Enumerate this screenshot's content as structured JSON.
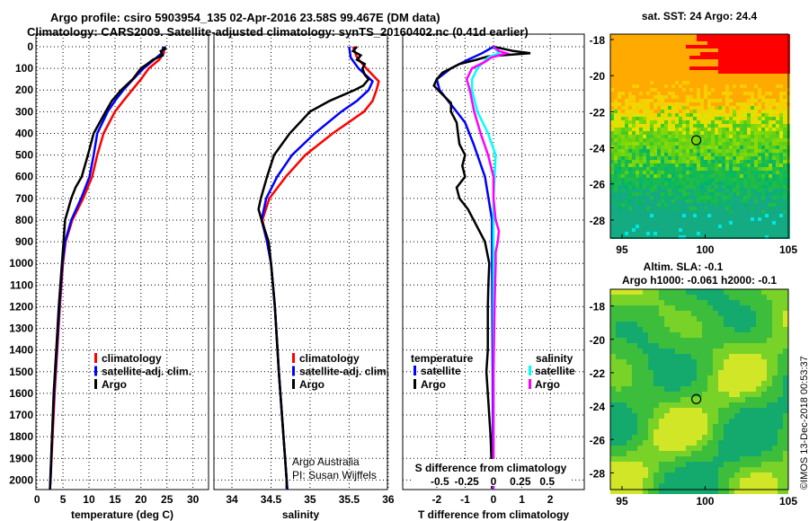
{
  "title_line1": "Argo profile: csiro 5903954_135 02-Apr-2016 23.58S 99.467E (DM data)",
  "title_line2": "Climatology: CARS2009. Satellite-adjusted climatology: synTS_20160402.nc (0.41d earlier)",
  "copyright": "©IMOS 13-Dec-2018 00:53:37",
  "colors": {
    "climatology": "#ff0000",
    "satellite": "#0000ff",
    "argo": "#000000",
    "sat_s": "#00ffff",
    "argo_s": "#ff00ff"
  },
  "chart_data": [
    {
      "type": "line",
      "name": "temperature",
      "xlabel": "temperature (deg C)",
      "ylabel": "depth",
      "xlim": [
        -0.2,
        33
      ],
      "ylim": [
        2044,
        -58
      ],
      "xticks": [
        "0",
        "5",
        "10",
        "15",
        "20",
        "25",
        "30"
      ],
      "xtick_values": [
        0,
        5,
        10,
        15,
        20,
        25,
        30
      ],
      "yticks": [
        "0",
        "100",
        "200",
        "300",
        "400",
        "500",
        "600",
        "700",
        "800",
        "900",
        "1000",
        "1100",
        "1200",
        "1300",
        "1400",
        "1500",
        "1600",
        "1700",
        "1800",
        "1900",
        "2000"
      ],
      "legend": [
        "climatology",
        "satellite-adj. clim.",
        "Argo"
      ],
      "series": [
        {
          "name": "climatology",
          "color": "#ff0000",
          "depth": [
            0,
            30,
            60,
            100,
            150,
            200,
            250,
            300,
            400,
            500,
            600,
            700,
            800,
            900,
            1000,
            1200,
            1400,
            1600,
            1800,
            2000,
            2044
          ],
          "values": [
            24.5,
            24.4,
            23.5,
            21.5,
            20,
            18.3,
            16.6,
            15,
            12.8,
            11.6,
            10.6,
            8.9,
            6.8,
            5.5,
            5.0,
            4.4,
            3.9,
            3.4,
            3.0,
            2.6,
            2.5
          ]
        },
        {
          "name": "satellite-adj. clim.",
          "color": "#0000ff",
          "depth": [
            0,
            30,
            60,
            100,
            150,
            200,
            250,
            300,
            400,
            500,
            600,
            700,
            800,
            900,
            1000,
            1200,
            1400,
            1600,
            1800,
            2000,
            2044
          ],
          "values": [
            24.3,
            24.0,
            22.5,
            20.5,
            18.5,
            16.6,
            15,
            13.6,
            11.6,
            10.9,
            10.1,
            8.5,
            6.6,
            5.4,
            4.9,
            4.3,
            3.8,
            3.3,
            2.9,
            2.55,
            2.5
          ]
        },
        {
          "name": "Argo",
          "color": "#000000",
          "depth": [
            0,
            10,
            20,
            40,
            60,
            80,
            100,
            150,
            200,
            250,
            300,
            400,
            500,
            600,
            650,
            700,
            750,
            800,
            900,
            1000,
            1200,
            1400,
            1600,
            1800,
            2000,
            2040
          ],
          "values": [
            24.4,
            24.7,
            23.8,
            24.2,
            22.3,
            21.2,
            20,
            18.4,
            16.2,
            14.4,
            13.2,
            10.9,
            9.8,
            8.6,
            7.4,
            6.6,
            6.0,
            5.4,
            5.1,
            4.8,
            4.2,
            3.7,
            3.2,
            2.9,
            2.6,
            2.5
          ]
        }
      ]
    },
    {
      "type": "line",
      "name": "salinity",
      "xlabel": "salinity",
      "xlim": [
        33.77,
        35.99
      ],
      "ylim": [
        2044,
        -58
      ],
      "xticks": [
        "34",
        "34.5",
        "35",
        "35.5",
        "36"
      ],
      "xtick_values": [
        34,
        34.5,
        35,
        35.5,
        36
      ],
      "legend": [
        "climatology",
        "satellite-adj. clim.",
        "Argo"
      ],
      "annotation": [
        "Argo Australia",
        "PI: Susan Wijffels"
      ],
      "series": [
        {
          "name": "climatology",
          "color": "#ff0000",
          "depth": [
            0,
            50,
            100,
            160,
            200,
            250,
            300,
            400,
            500,
            600,
            700,
            800,
            900,
            1000,
            1200,
            1500,
            2000,
            2044
          ],
          "values": [
            35.55,
            35.6,
            35.72,
            35.88,
            35.85,
            35.8,
            35.69,
            35.29,
            34.94,
            34.69,
            34.48,
            34.39,
            34.45,
            34.5,
            34.55,
            34.6,
            34.7,
            34.71
          ]
        },
        {
          "name": "satellite-adj. clim.",
          "color": "#0000ff",
          "depth": [
            0,
            50,
            100,
            160,
            200,
            250,
            300,
            400,
            500,
            600,
            700,
            800,
            900,
            1000,
            1200,
            1500,
            2000,
            2044
          ],
          "values": [
            35.5,
            35.52,
            35.62,
            35.8,
            35.75,
            35.6,
            35.4,
            35.06,
            34.77,
            34.58,
            34.44,
            34.38,
            34.45,
            34.5,
            34.55,
            34.6,
            34.7,
            34.71
          ]
        },
        {
          "name": "Argo",
          "color": "#000000",
          "depth": [
            0,
            20,
            40,
            60,
            80,
            100,
            130,
            150,
            180,
            200,
            250,
            300,
            400,
            500,
            600,
            700,
            750,
            800,
            900,
            1000,
            1200,
            1500,
            1800,
            2000,
            2040
          ],
          "values": [
            35.6,
            35.55,
            35.65,
            35.6,
            35.7,
            35.67,
            35.7,
            35.75,
            35.68,
            35.57,
            35.25,
            35.0,
            34.74,
            34.54,
            34.45,
            34.37,
            34.34,
            34.38,
            34.47,
            34.5,
            34.55,
            34.6,
            34.66,
            34.7,
            34.7
          ]
        }
      ]
    },
    {
      "type": "line",
      "name": "difference",
      "xlabel": "T difference from climatology",
      "xlabel_top": "S difference from climatology",
      "xlim": [
        -3.2,
        3.2
      ],
      "ylim": [
        2044,
        -58
      ],
      "xticks": [
        "-2",
        "-1",
        "0",
        "1",
        "2"
      ],
      "xtick_values": [
        -2,
        -1,
        0,
        1,
        2
      ],
      "sticks": [
        "-0.5",
        "-0.25",
        "0",
        "0.25",
        "0.5"
      ],
      "stick_values": [
        -0.5,
        -0.25,
        0,
        0.25,
        0.5
      ],
      "s_per_t": 0.2645,
      "legend_temperature": {
        "heading": "temperature",
        "items": [
          "satellite",
          "Argo"
        ]
      },
      "legend_salinity": {
        "heading": "salinity",
        "items": [
          "satellite",
          "Argo"
        ]
      },
      "series": [
        {
          "name": "T satellite",
          "color": "#0000ff",
          "unit": "T",
          "depth": [
            0,
            30,
            60,
            100,
            150,
            200,
            250,
            300,
            350,
            450,
            600,
            800,
            1000,
            1500,
            2000,
            2044
          ],
          "values": [
            0,
            -0.4,
            -0.9,
            -1.5,
            -2.0,
            -1.9,
            -1.6,
            -1.3,
            -1.0,
            -0.7,
            -0.3,
            -0.05,
            -0.05,
            -0.03,
            -0.02,
            -0.02
          ]
        },
        {
          "name": "T Argo",
          "color": "#000000",
          "unit": "T",
          "depth": [
            0,
            20,
            30,
            45,
            60,
            80,
            100,
            120,
            150,
            180,
            220,
            260,
            300,
            350,
            400,
            450,
            500,
            550,
            600,
            650,
            700,
            750,
            800,
            850,
            900,
            1000,
            1100,
            1200,
            1400,
            1500,
            1600,
            1800,
            2000,
            2040
          ],
          "values": [
            0,
            0.7,
            1.3,
            -0.2,
            -0.6,
            -1.2,
            -1.5,
            -1.8,
            -2.0,
            -2.1,
            -1.8,
            -1.5,
            -1.5,
            -1.3,
            -1.25,
            -1.2,
            -1.0,
            -1.1,
            -1.0,
            -1.3,
            -1.2,
            -0.9,
            -0.7,
            -0.5,
            -0.3,
            -0.15,
            -0.18,
            -0.2,
            -0.2,
            -0.25,
            -0.2,
            -0.1,
            -0.05,
            -0.05
          ]
        },
        {
          "name": "S satellite",
          "color": "#00ffff",
          "unit": "S",
          "depth": [
            0,
            30,
            50,
            100,
            150,
            200,
            300,
            400,
            500,
            600,
            700,
            800,
            1000,
            1500,
            2000,
            2044
          ],
          "values": [
            0,
            0.05,
            -0.05,
            -0.15,
            -0.2,
            -0.2,
            -0.15,
            -0.05,
            0.02,
            0.01,
            0,
            0,
            0,
            0,
            0,
            0
          ]
        },
        {
          "name": "S Argo",
          "color": "#ff00ff",
          "unit": "S",
          "depth": [
            0,
            20,
            30,
            50,
            70,
            100,
            150,
            200,
            250,
            300,
            400,
            500,
            600,
            700,
            800,
            850,
            900,
            950,
            1000,
            1200,
            1500,
            2000,
            2040
          ],
          "values": [
            0,
            0.05,
            0.12,
            -0.02,
            -0.08,
            -0.2,
            -0.25,
            -0.22,
            -0.2,
            -0.18,
            -0.12,
            -0.05,
            0,
            0,
            0.02,
            0.05,
            0.04,
            0.02,
            0.02,
            0.01,
            0,
            0,
            0
          ]
        }
      ]
    },
    {
      "type": "heatmap",
      "name": "sst-map",
      "title": "sat. SST: 24 Argo: 24.4",
      "xlim": [
        94.3,
        105
      ],
      "ylim": [
        -29.0,
        -17.7
      ],
      "xticks": [
        "95",
        "100",
        "105"
      ],
      "xtick_values": [
        95,
        100,
        105
      ],
      "yticks": [
        "-18",
        "-20",
        "-22",
        "-24",
        "-26",
        "-28"
      ],
      "ytick_values": [
        -18,
        -20,
        -22,
        -24,
        -26,
        -28
      ],
      "argo_position": [
        99.467,
        -23.58
      ]
    },
    {
      "type": "heatmap",
      "name": "sla-map",
      "title": "Altim. SLA: -0.1",
      "subtitle": "Argo h1000: -0.061 h2000: -0.1",
      "xlim": [
        94.3,
        105
      ],
      "ylim": [
        -29.0,
        -17.0
      ],
      "xticks": [
        "95",
        "100",
        "105"
      ],
      "xtick_values": [
        95,
        100,
        105
      ],
      "yticks": [
        "-18",
        "-20",
        "-22",
        "-24",
        "-26",
        "-28"
      ],
      "ytick_values": [
        -18,
        -20,
        -22,
        -24,
        -26,
        -28
      ],
      "argo_position": [
        99.467,
        -23.58
      ]
    }
  ]
}
